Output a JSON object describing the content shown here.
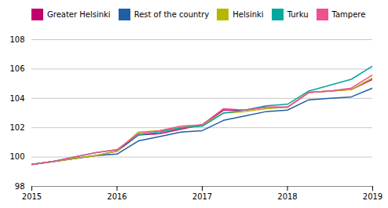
{
  "chart_data": {
    "type": "line",
    "x": [
      2015.0,
      2015.25,
      2015.5,
      2015.75,
      2016.0,
      2016.25,
      2016.5,
      2016.75,
      2017.0,
      2017.25,
      2017.5,
      2017.75,
      2018.0,
      2018.25,
      2018.5,
      2018.75,
      2019.0
    ],
    "series": [
      {
        "name": "Greater Helsinki",
        "color": "#c0006b",
        "values": [
          99.5,
          99.7,
          99.9,
          100.1,
          100.4,
          101.5,
          101.6,
          101.9,
          102.2,
          103.2,
          103.2,
          103.4,
          103.4,
          104.4,
          104.5,
          104.6,
          105.3
        ]
      },
      {
        "name": "Rest of the country",
        "color": "#1f5fa6",
        "values": [
          99.5,
          99.7,
          99.9,
          100.1,
          100.2,
          101.1,
          101.4,
          101.7,
          101.8,
          102.5,
          102.8,
          103.1,
          103.2,
          103.9,
          104.0,
          104.1,
          104.7
        ]
      },
      {
        "name": "Helsinki",
        "color": "#b5b800",
        "values": [
          99.5,
          99.7,
          99.9,
          100.1,
          100.4,
          101.7,
          101.8,
          102.0,
          102.2,
          103.0,
          103.1,
          103.3,
          103.4,
          104.4,
          104.5,
          104.6,
          105.4
        ]
      },
      {
        "name": "Turku",
        "color": "#00a8a0",
        "values": [
          99.5,
          99.7,
          100.0,
          100.3,
          100.5,
          101.5,
          101.7,
          102.0,
          102.1,
          103.0,
          103.2,
          103.5,
          103.6,
          104.5,
          104.9,
          105.3,
          106.2
        ]
      },
      {
        "name": "Tampere",
        "color": "#f0508c",
        "values": [
          99.5,
          99.7,
          100.0,
          100.3,
          100.5,
          101.6,
          101.8,
          102.1,
          102.2,
          103.3,
          103.2,
          103.4,
          103.4,
          104.4,
          104.5,
          104.7,
          105.6
        ]
      }
    ],
    "xlim": [
      2015.0,
      2019.0
    ],
    "xticks": [
      2015,
      2016,
      2017,
      2018,
      2019
    ],
    "ylim": [
      98,
      108
    ],
    "yticks": [
      98,
      100,
      102,
      104,
      106,
      108
    ],
    "grid": true,
    "legend": "upper left"
  }
}
